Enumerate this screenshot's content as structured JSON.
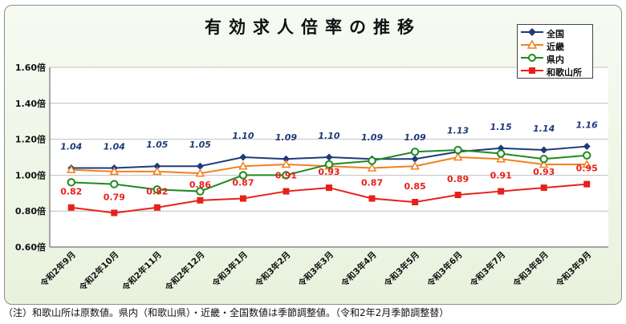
{
  "chart_data": {
    "type": "line",
    "title": "有効求人倍率の推移",
    "categories": [
      "令和2年9月",
      "令和2年10月",
      "令和2年11月",
      "令和2年12月",
      "令和3年1月",
      "令和3年2月",
      "令和3年3月",
      "令和3年4月",
      "令和3年5月",
      "令和3年6月",
      "令和3年7月",
      "令和3年8月",
      "令和3年9月"
    ],
    "ylim": [
      0.6,
      1.6
    ],
    "yticks": [
      "0.60倍",
      "0.80倍",
      "1.00倍",
      "1.20倍",
      "1.40倍",
      "1.60倍"
    ],
    "grid": true,
    "legend": "top-right",
    "series": [
      {
        "name": "全国",
        "color": "#1f3a7a",
        "marker": "diamond",
        "values": [
          1.04,
          1.04,
          1.05,
          1.05,
          1.1,
          1.09,
          1.1,
          1.09,
          1.09,
          1.13,
          1.15,
          1.14,
          1.16
        ],
        "labels": [
          "1.04",
          "1.04",
          "1.05",
          "1.05",
          "1.10",
          "1.09",
          "1.10",
          "1.09",
          "1.09",
          "1.13",
          "1.15",
          "1.14",
          "1.16"
        ]
      },
      {
        "name": "近畿",
        "color": "#f0801e",
        "marker": "triangle",
        "values": [
          1.03,
          1.02,
          1.02,
          1.01,
          1.05,
          1.06,
          1.05,
          1.04,
          1.05,
          1.1,
          1.09,
          1.06,
          1.06
        ],
        "labels": []
      },
      {
        "name": "県内",
        "color": "#1e8a1e",
        "marker": "circle",
        "values": [
          0.96,
          0.95,
          0.92,
          0.91,
          1.0,
          1.0,
          1.06,
          1.08,
          1.13,
          1.14,
          1.12,
          1.09,
          1.11
        ],
        "labels": []
      },
      {
        "name": "和歌山所",
        "color": "#e8201a",
        "marker": "square",
        "values": [
          0.82,
          0.79,
          0.82,
          0.86,
          0.87,
          0.91,
          0.93,
          0.87,
          0.85,
          0.89,
          0.91,
          0.93,
          0.95
        ],
        "labels": [
          "0.82",
          "0.79",
          "0.82",
          "0.86",
          "0.87",
          "0.91",
          "0.93",
          "0.87",
          "0.85",
          "0.89",
          "0.91",
          "0.93",
          "0.95"
        ]
      }
    ]
  },
  "footnote": "（注）和歌山所は原数値。県内（和歌山県）・近畿・全国数値は季節調整値。（令和2年2月季節調整替）"
}
